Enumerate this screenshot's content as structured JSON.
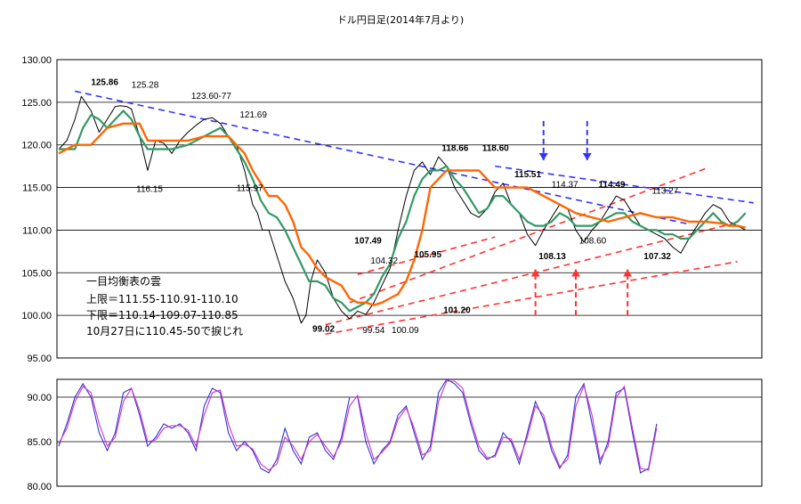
{
  "chart_data": [
    {
      "type": "line",
      "title": "ドル円日足(2014年7月より)",
      "ylim": [
        95,
        130
      ],
      "yticks": [
        "130.00",
        "125.00",
        "120.00",
        "115.00",
        "110.00",
        "105.00",
        "100.00",
        "95.00"
      ],
      "series": [
        {
          "role": "price",
          "color": "#000000",
          "x": [
            0,
            5,
            10,
            14,
            20,
            25,
            30,
            35,
            38,
            42,
            45,
            50,
            55,
            60,
            65,
            70,
            75,
            80,
            85,
            90,
            95,
            100,
            105,
            110,
            115,
            120,
            123,
            126,
            130,
            135,
            140,
            145,
            150,
            153,
            156,
            160,
            165,
            170,
            175,
            180,
            185,
            190,
            195,
            200,
            205,
            210,
            215,
            220,
            225,
            230,
            235,
            240,
            245,
            250,
            255,
            260,
            265,
            270,
            275,
            280,
            285,
            290,
            295,
            300,
            305,
            310,
            315,
            320,
            325,
            330,
            335,
            340,
            345,
            350,
            355,
            360,
            365,
            370,
            375,
            380,
            385,
            390,
            395,
            400,
            405,
            410,
            415,
            420,
            425
          ],
          "values": [
            119.5,
            120.5,
            123,
            125.7,
            124,
            121.5,
            123,
            124.5,
            124.6,
            124.5,
            124.2,
            121,
            117,
            120.5,
            120.2,
            119,
            120.5,
            121.5,
            122.3,
            123,
            123.2,
            122.5,
            121,
            120,
            117,
            113,
            112,
            110,
            110,
            107,
            104,
            102,
            99.1,
            100,
            104,
            106.5,
            105,
            102,
            100.5,
            99.6,
            100.5,
            100.1,
            101.5,
            103.5,
            105.5,
            110,
            114,
            117,
            118,
            116.5,
            118.6,
            117.5,
            115,
            113.5,
            112,
            111.5,
            112.5,
            114.5,
            115.5,
            113,
            112,
            109.5,
            108.2,
            110,
            111.5,
            113,
            112.5,
            110,
            108.6,
            110,
            111,
            112.5,
            114,
            113.5,
            112,
            110.5,
            110,
            109.5,
            109,
            108,
            107.3,
            109,
            110.5,
            112,
            113,
            112.5,
            111,
            110.5,
            110
          ]
        },
        {
          "role": "baseline",
          "color": "#FF6600",
          "x": [
            0,
            10,
            20,
            30,
            40,
            50,
            55,
            60,
            70,
            80,
            90,
            100,
            105,
            110,
            115,
            120,
            125,
            130,
            135,
            140,
            145,
            150,
            155,
            160,
            165,
            170,
            175,
            180,
            185,
            190,
            195,
            200,
            205,
            210,
            215,
            220,
            225,
            230,
            240,
            250,
            260,
            270,
            280,
            290,
            300,
            310,
            320,
            330,
            340,
            350,
            360,
            370,
            380,
            390,
            400,
            410,
            415,
            420,
            425
          ],
          "values": [
            119,
            120,
            120,
            122,
            122.5,
            122.5,
            120.5,
            120.5,
            120.5,
            120.5,
            121,
            121,
            121,
            120,
            119,
            117,
            115.5,
            114,
            114,
            113,
            111,
            108,
            107,
            105.5,
            104.5,
            104,
            103.5,
            102,
            101.5,
            101.5,
            101.2,
            101.5,
            102,
            102.5,
            104,
            106.5,
            110,
            115,
            117,
            117,
            117,
            115,
            115,
            115,
            114,
            113,
            112,
            111.5,
            111,
            111.5,
            112,
            111.5,
            111.5,
            111,
            111,
            110.8,
            110.5,
            110.5,
            110.3
          ]
        },
        {
          "role": "conversion",
          "color": "#339966",
          "x": [
            0,
            10,
            15,
            20,
            25,
            30,
            35,
            40,
            45,
            50,
            55,
            60,
            70,
            80,
            90,
            100,
            105,
            110,
            115,
            120,
            125,
            130,
            135,
            140,
            145,
            150,
            155,
            160,
            165,
            170,
            175,
            180,
            185,
            190,
            195,
            200,
            205,
            210,
            215,
            220,
            225,
            230,
            235,
            240,
            245,
            250,
            255,
            260,
            265,
            270,
            275,
            280,
            285,
            290,
            295,
            300,
            305,
            310,
            315,
            320,
            325,
            330,
            335,
            340,
            345,
            350,
            355,
            360,
            365,
            370,
            375,
            380,
            385,
            390,
            395,
            400,
            405,
            410,
            415,
            420,
            425
          ],
          "values": [
            119.5,
            119.5,
            122,
            123.5,
            123,
            122,
            123,
            124,
            123,
            121,
            119.5,
            119.5,
            119.5,
            120,
            121,
            122,
            121,
            119.5,
            118,
            116,
            113.5,
            112,
            111.5,
            110,
            108,
            106,
            104,
            104,
            103.5,
            102,
            101.5,
            100.5,
            101,
            101.5,
            102.5,
            104.5,
            106,
            109,
            111,
            114,
            116,
            117,
            117,
            117.5,
            116,
            115,
            113.5,
            112,
            112.5,
            114,
            114,
            113,
            112,
            111,
            110.5,
            110.5,
            111,
            112,
            111.5,
            110.5,
            110.5,
            110.5,
            111,
            111.5,
            112,
            112,
            111,
            110.5,
            110,
            110,
            109.5,
            109.5,
            109,
            109,
            110,
            111,
            112,
            111,
            110.5,
            111,
            112
          ]
        }
      ],
      "annotations": [
        {
          "text": "125.86",
          "x": 20,
          "y": 127,
          "bold": true
        },
        {
          "text": "125.28",
          "x": 45,
          "y": 126.7,
          "bold": false
        },
        {
          "text": "123.60-77",
          "x": 82,
          "y": 125.4,
          "bold": false
        },
        {
          "text": "121.69",
          "x": 112,
          "y": 123.2,
          "bold": false
        },
        {
          "text": "116.15",
          "x": 48,
          "y": 114.5,
          "bold": false
        },
        {
          "text": "115.97",
          "x": 110,
          "y": 114.6,
          "bold": false
        },
        {
          "text": "107.49",
          "x": 183,
          "y": 108.4,
          "bold": true
        },
        {
          "text": "104.32",
          "x": 193,
          "y": 106.1,
          "bold": false
        },
        {
          "text": "105.95",
          "x": 220,
          "y": 106.8,
          "bold": true
        },
        {
          "text": "101.20",
          "x": 238,
          "y": 100.3,
          "bold": true
        },
        {
          "text": "99.02",
          "x": 157,
          "y": 98.1,
          "bold": true
        },
        {
          "text": "99.54",
          "x": 188,
          "y": 97.9,
          "bold": false
        },
        {
          "text": "100.09",
          "x": 206,
          "y": 97.9,
          "bold": false
        },
        {
          "text": "118.66",
          "x": 237,
          "y": 119.3,
          "bold": true
        },
        {
          "text": "118.60",
          "x": 262,
          "y": 119.3,
          "bold": true
        },
        {
          "text": "115.51",
          "x": 282,
          "y": 116.2,
          "bold": true
        },
        {
          "text": "114.37",
          "x": 305,
          "y": 115.0,
          "bold": false
        },
        {
          "text": "114.49",
          "x": 334,
          "y": 115.0,
          "bold": true
        },
        {
          "text": "113.27",
          "x": 367,
          "y": 114.3,
          "bold": false
        },
        {
          "text": "108.13",
          "x": 297,
          "y": 106.6,
          "bold": true
        },
        {
          "text": "108.60",
          "x": 322,
          "y": 108.4,
          "bold": false
        },
        {
          "text": "107.32",
          "x": 362,
          "y": 106.6,
          "bold": true
        }
      ],
      "trendlines": [
        {
          "color": "#3333FF",
          "x": [
            10,
            390
          ],
          "values": [
            126.3,
            110.7
          ]
        },
        {
          "color": "#3333FF",
          "x": [
            270,
            430
          ],
          "values": [
            117.5,
            113.2
          ]
        },
        {
          "color": "#FF3333",
          "x": [
            165,
            420
          ],
          "values": [
            98.9,
            110.9
          ]
        },
        {
          "color": "#FF3333",
          "x": [
            180,
            400
          ],
          "values": [
            101.5,
            117.2
          ]
        },
        {
          "color": "#FF3333",
          "x": [
            165,
            420
          ],
          "values": [
            97.8,
            106.3
          ]
        },
        {
          "color": "#FF3333",
          "x": [
            185,
            270
          ],
          "values": [
            104.8,
            109.2
          ]
        }
      ],
      "arrows": [
        {
          "color": "#3333FF",
          "dir": "down",
          "x": 300,
          "from": 122.8,
          "to": 118.2
        },
        {
          "color": "#3333FF",
          "dir": "down",
          "x": 327,
          "from": 122.8,
          "to": 118.2
        },
        {
          "color": "#FF3333",
          "dir": "up",
          "x": 295,
          "from": 100.0,
          "to": 105.4
        },
        {
          "color": "#FF3333",
          "dir": "up",
          "x": 320,
          "from": 100.0,
          "to": 105.4
        },
        {
          "color": "#FF3333",
          "dir": "up",
          "x": 352,
          "from": 100.0,
          "to": 105.4
        }
      ]
    },
    {
      "type": "line",
      "ylim": [
        80,
        92
      ],
      "yticks": [
        "90.00",
        "85.00",
        "80.00"
      ],
      "series": [
        {
          "color": "#3333CC",
          "x": [
            0,
            5,
            10,
            15,
            20,
            25,
            30,
            35,
            40,
            45,
            50,
            55,
            60,
            65,
            70,
            75,
            80,
            85,
            90,
            95,
            100,
            105,
            110,
            115,
            120,
            125,
            130,
            135,
            140,
            145,
            150,
            155,
            160,
            165,
            170,
            175,
            180,
            185,
            190,
            195,
            200,
            205,
            210,
            215,
            220,
            225,
            230,
            235,
            240,
            245,
            250,
            255,
            260,
            265,
            270,
            275,
            280,
            285,
            290,
            295,
            300,
            305,
            310,
            315,
            320,
            325,
            330,
            335,
            340,
            345,
            350,
            355,
            360,
            365,
            370
          ],
          "values": [
            84.5,
            87,
            90,
            91.5,
            90,
            86,
            84,
            86,
            90.5,
            91,
            88,
            84.5,
            85.5,
            87,
            86.5,
            87,
            86,
            84,
            89,
            91,
            90.5,
            86,
            84,
            85,
            84,
            82,
            81.5,
            83,
            86.5,
            84,
            82.5,
            85.5,
            86,
            84,
            83,
            85.5,
            90,
            90,
            85,
            82.5,
            84,
            85,
            88,
            89,
            86,
            83,
            84.5,
            90.5,
            92,
            91.5,
            90.5,
            87,
            84,
            83,
            83.5,
            86,
            85,
            82.5,
            86,
            89.5,
            87.5,
            84,
            82,
            83.5,
            90,
            91.5,
            87,
            82.5,
            85,
            90.5,
            91,
            86,
            81.5,
            82,
            87
          ]
        },
        {
          "color": "#CC33CC",
          "x": [
            0,
            5,
            10,
            15,
            20,
            25,
            30,
            35,
            40,
            45,
            50,
            55,
            60,
            65,
            70,
            75,
            80,
            85,
            90,
            95,
            100,
            105,
            110,
            115,
            120,
            125,
            130,
            135,
            140,
            145,
            150,
            155,
            160,
            165,
            170,
            175,
            180,
            185,
            190,
            195,
            200,
            205,
            210,
            215,
            220,
            225,
            230,
            235,
            240,
            245,
            250,
            255,
            260,
            265,
            270,
            275,
            280,
            285,
            290,
            295,
            300,
            305,
            310,
            315,
            320,
            325,
            330,
            335,
            340,
            345,
            350,
            355,
            360,
            365,
            370
          ],
          "values": [
            84.8,
            86.5,
            89.5,
            91.2,
            90.5,
            87,
            84.5,
            85.5,
            89.5,
            91,
            88.5,
            85,
            85.2,
            86.5,
            86.8,
            86.8,
            86.3,
            84.5,
            88,
            90.5,
            90.8,
            87,
            84.5,
            84.7,
            84.2,
            82.5,
            81.8,
            82.5,
            85.5,
            84.5,
            83,
            85,
            85.8,
            84.5,
            83.3,
            85,
            89,
            90.2,
            86,
            83,
            83.8,
            84.8,
            87.5,
            88.8,
            86.5,
            83.5,
            84,
            89.5,
            91.8,
            91.8,
            91,
            87.5,
            84.5,
            83.2,
            83.3,
            85.5,
            85.3,
            83,
            85.5,
            89,
            88,
            84.5,
            82.2,
            83,
            89,
            91.3,
            88,
            83,
            84.5,
            90,
            91.2,
            86.5,
            82,
            81.8,
            86.5
          ]
        }
      ]
    }
  ],
  "cloud_note": {
    "line1": "一目均衡表の雲",
    "line2": "上限＝111.55-110.91-110.10",
    "line3": "下限＝110.14-109.07-110.85",
    "line4": "10月27日に110.45-50で捩じれ"
  }
}
